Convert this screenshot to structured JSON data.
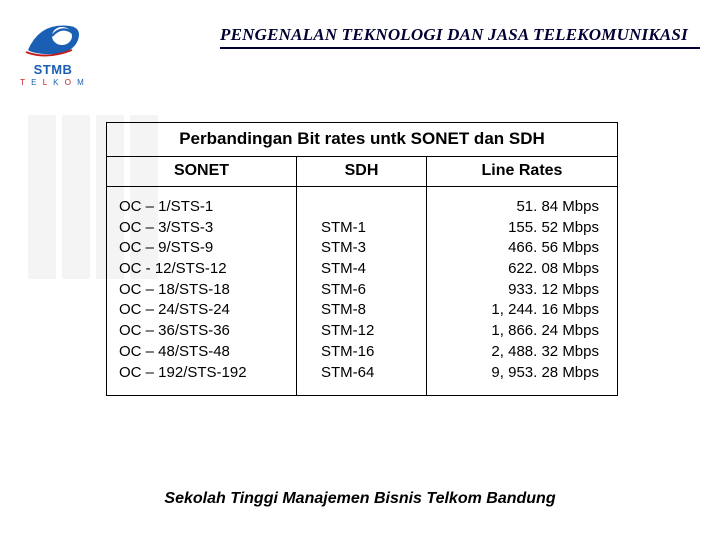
{
  "header": {
    "title": "PENGENALAN TEKNOLOGI DAN JASA TELEKOMUNIKASI",
    "underline_color": "#000033"
  },
  "logo": {
    "brand": "STMB",
    "sub": "TELKOM",
    "swoosh_color": "#1a5fb4",
    "accent_color": "#c01c1c"
  },
  "watermark": {
    "bar_color": "#f4f4f4",
    "bar_count": 4
  },
  "table": {
    "title": "Perbandingan Bit rates untk SONET  dan SDH",
    "columns": [
      "SONET",
      "SDH",
      "Line Rates"
    ],
    "sonet": [
      "OC – 1/STS-1",
      "OC – 3/STS-3",
      "OC – 9/STS-9",
      "OC - 12/STS-12",
      "OC – 18/STS-18",
      "OC – 24/STS-24",
      "OC – 36/STS-36",
      "OC – 48/STS-48",
      "OC – 192/STS-192"
    ],
    "sdh": [
      "",
      "STM-1",
      "STM-3",
      "STM-4",
      "STM-6",
      "STM-8",
      "STM-12",
      "STM-16",
      "STM-64"
    ],
    "rates": [
      "51. 84 Mbps",
      "155. 52 Mbps",
      "466. 56 Mbps",
      "622. 08 Mbps",
      "933. 12 Mbps",
      "1, 244. 16 Mbps",
      "1, 866. 24 Mbps",
      "2, 488. 32 Mbps",
      "9, 953. 28 Mbps"
    ]
  },
  "footer": {
    "text": "Sekolah Tinggi Manajemen Bisnis Telkom Bandung"
  }
}
